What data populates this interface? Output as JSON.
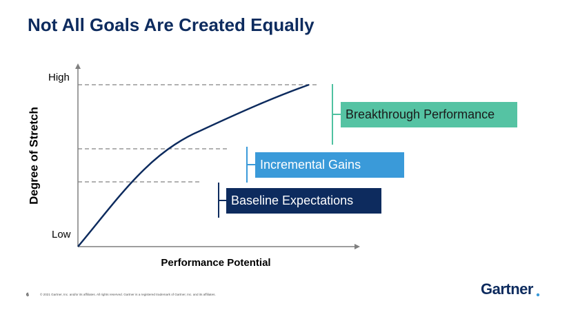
{
  "title": "Not All Goals Are Created Equally",
  "diagram": {
    "y_axis_label": "Degree of Stretch",
    "x_axis_label": "Performance Potential",
    "y_high": "High",
    "y_low": "Low",
    "levels": [
      {
        "label": "Breakthrough Performance"
      },
      {
        "label": "Incremental Gains"
      },
      {
        "label": "Baseline Expectations"
      }
    ]
  },
  "footer": {
    "page": "6",
    "copyright": "© 2021 Gartner, Inc. and/or its affiliates. All rights reserved. Gartner is a registered trademark of Gartner, Inc. and its affiliates."
  },
  "logo": "Gartner"
}
